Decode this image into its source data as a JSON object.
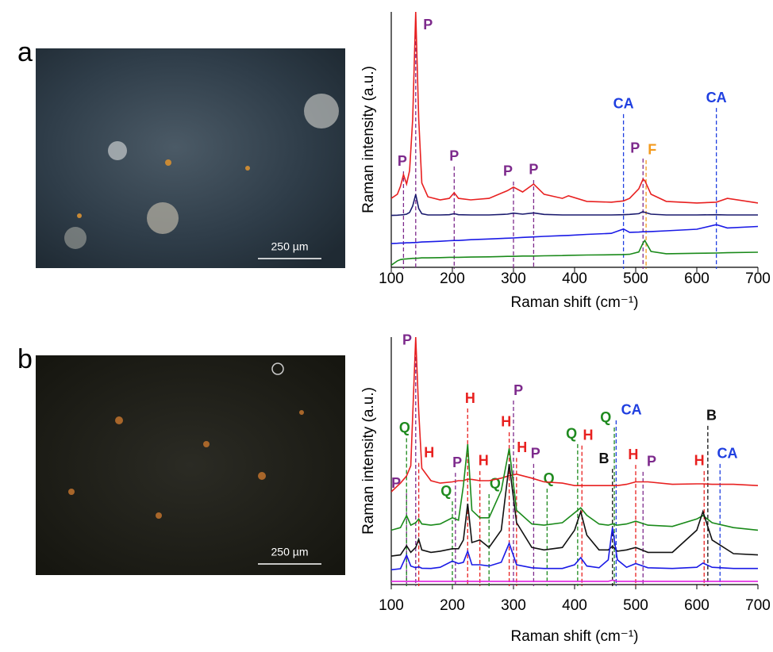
{
  "panels": [
    {
      "label": "a",
      "scale_bar": "250 µm"
    },
    {
      "label": "b",
      "scale_bar": "250 µm"
    }
  ],
  "chart_data": [
    {
      "type": "line",
      "xlabel": "Raman shift (cm⁻¹)",
      "ylabel": "Raman intensity (a.u.)",
      "xlim": [
        100,
        700
      ],
      "ylim": [
        0,
        100
      ],
      "xticks": [
        100,
        200,
        300,
        400,
        500,
        600,
        700
      ],
      "x": [
        100,
        110,
        115,
        120,
        125,
        130,
        135,
        140,
        145,
        150,
        160,
        180,
        195,
        203,
        210,
        230,
        260,
        290,
        300,
        315,
        333,
        350,
        380,
        390,
        420,
        460,
        480,
        490,
        505,
        512,
        515,
        525,
        550,
        600,
        632,
        650,
        700
      ],
      "series": [
        {
          "color": "#e82020",
          "values": [
            27,
            28.6,
            31.7,
            36.3,
            32.6,
            37.9,
            58,
            100,
            58,
            33,
            27.6,
            26.4,
            27,
            29.2,
            27,
            26.4,
            27,
            30,
            31.4,
            29.5,
            32.6,
            28.6,
            27,
            28,
            25.8,
            25.5,
            26,
            27,
            30.7,
            34.5,
            33.9,
            28.6,
            25.8,
            25.2,
            25.5,
            27,
            25.2
          ]
        },
        {
          "color": "#1a1a6e",
          "values": [
            20.3,
            20.4,
            20.5,
            20.6,
            20.8,
            21.5,
            24,
            28.5,
            23,
            21,
            20.5,
            20.5,
            20.6,
            21,
            20.6,
            20.5,
            20.5,
            20.8,
            21.2,
            20.8,
            21.3,
            20.7,
            20.5,
            20.5,
            20.5,
            20.5,
            20.6,
            20.7,
            21,
            21.8,
            21.5,
            20.8,
            20.5,
            20.5,
            20.6,
            20.5,
            20.5
          ]
        },
        {
          "color": "#1a1ae6",
          "values": [
            9.3,
            9.4,
            9.5,
            9.5,
            9.6,
            9.6,
            9.7,
            9.7,
            9.8,
            9.9,
            10,
            10.2,
            10.4,
            10.5,
            10.5,
            10.8,
            11.1,
            11.4,
            11.5,
            11.7,
            11.9,
            12.1,
            12.4,
            12.5,
            12.9,
            13.3,
            15,
            13.7,
            13.8,
            13.9,
            13.9,
            14,
            14.3,
            14.9,
            16.7,
            15.4,
            16
          ]
        },
        {
          "color": "#1a8a1a",
          "values": [
            0.8,
            2.5,
            3,
            3.2,
            3.3,
            3.4,
            3.5,
            3.5,
            3.6,
            3.7,
            3.7,
            3.8,
            3.9,
            3.9,
            3.9,
            4,
            4.1,
            4.3,
            4.3,
            4.4,
            4.4,
            4.5,
            4.6,
            4.7,
            4.8,
            4.9,
            5,
            5.1,
            6,
            9.5,
            10.5,
            6.2,
            5.3,
            5.5,
            5.6,
            5.7,
            5.9
          ]
        }
      ],
      "annotations": [
        {
          "label": "P",
          "x": 120,
          "label_x": 118,
          "y": 41.3,
          "color": "#7d2a8c"
        },
        {
          "label": "P",
          "x": 140,
          "label_x": 160,
          "y": 94.7,
          "color": "#7d2a8c"
        },
        {
          "label": "P",
          "x": 203,
          "label_x": 203,
          "y": 43.2,
          "color": "#7d2a8c"
        },
        {
          "label": "P",
          "x": 300,
          "label_x": 291,
          "y": 37.3,
          "color": "#7d2a8c"
        },
        {
          "label": "P",
          "x": 333,
          "label_x": 333,
          "y": 37.9,
          "color": "#7d2a8c"
        },
        {
          "label": "CA",
          "x": 480,
          "label_x": 480,
          "y": 63.7,
          "color": "#1f3fe0"
        },
        {
          "label": "P",
          "x": 512,
          "label_x": 499,
          "y": 46.3,
          "color": "#7d2a8c"
        },
        {
          "label": "F",
          "x": 517,
          "label_x": 527,
          "y": 45.7,
          "color": "#f39a1e"
        },
        {
          "label": "CA",
          "x": 632,
          "label_x": 632,
          "y": 66.1,
          "color": "#1f3fe0"
        }
      ]
    },
    {
      "type": "line",
      "xlabel": "Raman shift (cm⁻¹)",
      "ylabel": "Raman intensity (a.u.)",
      "xlim": [
        100,
        700
      ],
      "ylim": [
        0,
        100
      ],
      "xticks": [
        100,
        200,
        300,
        400,
        500,
        600,
        700
      ],
      "x": [
        100,
        115,
        125,
        132,
        140,
        145,
        150,
        165,
        180,
        200,
        210,
        218,
        225,
        232,
        245,
        260,
        280,
        293,
        305,
        330,
        350,
        380,
        400,
        410,
        420,
        440,
        455,
        462,
        470,
        485,
        500,
        520,
        560,
        600,
        610,
        625,
        660,
        700
      ],
      "series": [
        {
          "color": "#e82020",
          "values": [
            37.5,
            41,
            43.9,
            48,
            100,
            70,
            47,
            42,
            41,
            41.5,
            42,
            42,
            42.6,
            42.5,
            42,
            42,
            43,
            44,
            44.6,
            43,
            41.5,
            41,
            40,
            40,
            40,
            40,
            40,
            40,
            40,
            40.5,
            41.5,
            41.5,
            40.5,
            40.7,
            40.7,
            40.5,
            40.5,
            40
          ]
        },
        {
          "color": "#1a8a1a",
          "values": [
            22,
            23,
            27.9,
            24,
            25,
            26.5,
            24.5,
            24,
            24.5,
            27,
            26,
            40,
            56.7,
            30,
            27,
            27,
            38,
            55,
            30,
            24.5,
            24,
            25,
            29,
            31,
            28,
            24.5,
            24,
            24.5,
            24,
            24.5,
            25.6,
            24,
            23.5,
            26.5,
            27.9,
            25,
            23,
            22
          ]
        },
        {
          "color": "#111111",
          "values": [
            11.5,
            12,
            15.7,
            13,
            15,
            18.3,
            14,
            13,
            13.5,
            14.5,
            14.5,
            18,
            32.7,
            17,
            18,
            15,
            22,
            48.7,
            25,
            15,
            14,
            15,
            22,
            29.5,
            20,
            14,
            14,
            15.5,
            13.5,
            14,
            15,
            13,
            13,
            22,
            29.5,
            18,
            12.5,
            12
          ]
        },
        {
          "color": "#1a1ae6",
          "values": [
            6,
            6.4,
            11.9,
            7.5,
            6.8,
            7.2,
            6.6,
            6.5,
            7,
            9.5,
            8.5,
            9,
            13.5,
            8,
            8,
            7.5,
            9,
            16.7,
            8,
            6.8,
            6.5,
            6.5,
            8,
            10.9,
            7.5,
            6.8,
            10,
            23,
            10,
            7,
            8.5,
            6.8,
            6.5,
            7,
            8.7,
            7,
            6.5,
            6.5
          ]
        },
        {
          "color": "#e020e0",
          "values": [
            1.3,
            1.3,
            1.3,
            1.3,
            1.3,
            1.3,
            1.3,
            1.3,
            1.3,
            1.3,
            1.3,
            1.3,
            1.3,
            1.3,
            1.3,
            1.3,
            1.3,
            1.3,
            1.3,
            1.3,
            1.3,
            1.3,
            1.3,
            1.3,
            1.3,
            1.3,
            1.3,
            1.8,
            1.3,
            1.3,
            1.3,
            1.3,
            1.3,
            1.3,
            1.3,
            1.3,
            1.3,
            1.3
          ]
        }
      ],
      "annotations": [
        {
          "label": "P",
          "x": 125,
          "label_x": 108,
          "y": 40.7,
          "color": "#7d2a8c"
        },
        {
          "label": "P",
          "x": 140,
          "label_x": 126,
          "y": 98.4,
          "color": "#7d2a8c"
        },
        {
          "label": "Q",
          "x": 125,
          "label_x": 122,
          "y": 63,
          "color": "#1e8a1e"
        },
        {
          "label": "H",
          "x": 145,
          "label_x": 162,
          "y": 53,
          "color": "#e8201f"
        },
        {
          "label": "Q",
          "x": 200,
          "label_x": 190,
          "y": 37.5,
          "color": "#1e8a1e"
        },
        {
          "label": "P",
          "x": 205,
          "label_x": 208,
          "y": 49,
          "color": "#7d2a8c"
        },
        {
          "label": "H",
          "x": 225,
          "label_x": 229,
          "y": 75,
          "color": "#e8201f"
        },
        {
          "label": "H",
          "x": 245,
          "label_x": 251,
          "y": 49.7,
          "color": "#e8201f"
        },
        {
          "label": "Q",
          "x": 260,
          "label_x": 270,
          "y": 40.4,
          "color": "#1e8a1e"
        },
        {
          "label": "H",
          "x": 293,
          "label_x": 288,
          "y": 65.4,
          "color": "#e8201f"
        },
        {
          "label": "P",
          "x": 300,
          "label_x": 308,
          "y": 78.2,
          "color": "#7d2a8c"
        },
        {
          "label": "H",
          "x": 305,
          "label_x": 314,
          "y": 55,
          "color": "#e8201f"
        },
        {
          "label": "P",
          "x": 333,
          "label_x": 336,
          "y": 52.6,
          "color": "#7d2a8c"
        },
        {
          "label": "Q",
          "x": 355,
          "label_x": 358,
          "y": 42.6,
          "color": "#1e8a1e"
        },
        {
          "label": "Q",
          "x": 405,
          "label_x": 395,
          "y": 60.6,
          "color": "#1e8a1e"
        },
        {
          "label": "H",
          "x": 412,
          "label_x": 422,
          "y": 60,
          "color": "#e8201f"
        },
        {
          "label": "B",
          "x": 462,
          "label_x": 448,
          "y": 50.6,
          "color": "#111111"
        },
        {
          "label": "Q",
          "x": 465,
          "label_x": 451,
          "y": 67.3,
          "color": "#1e8a1e"
        },
        {
          "label": "CA",
          "x": 468,
          "label_x": 493,
          "y": 70.2,
          "color": "#1f3fe0"
        },
        {
          "label": "H",
          "x": 500,
          "label_x": 496,
          "y": 52.2,
          "color": "#e8201f"
        },
        {
          "label": "P",
          "x": 512,
          "label_x": 526,
          "y": 49.4,
          "color": "#7d2a8c"
        },
        {
          "label": "H",
          "x": 612,
          "label_x": 604,
          "y": 49.7,
          "color": "#e8201f"
        },
        {
          "label": "B",
          "x": 618,
          "label_x": 624,
          "y": 68,
          "color": "#111111"
        },
        {
          "label": "CA",
          "x": 638,
          "label_x": 650,
          "y": 52.6,
          "color": "#1f3fe0"
        }
      ]
    }
  ]
}
